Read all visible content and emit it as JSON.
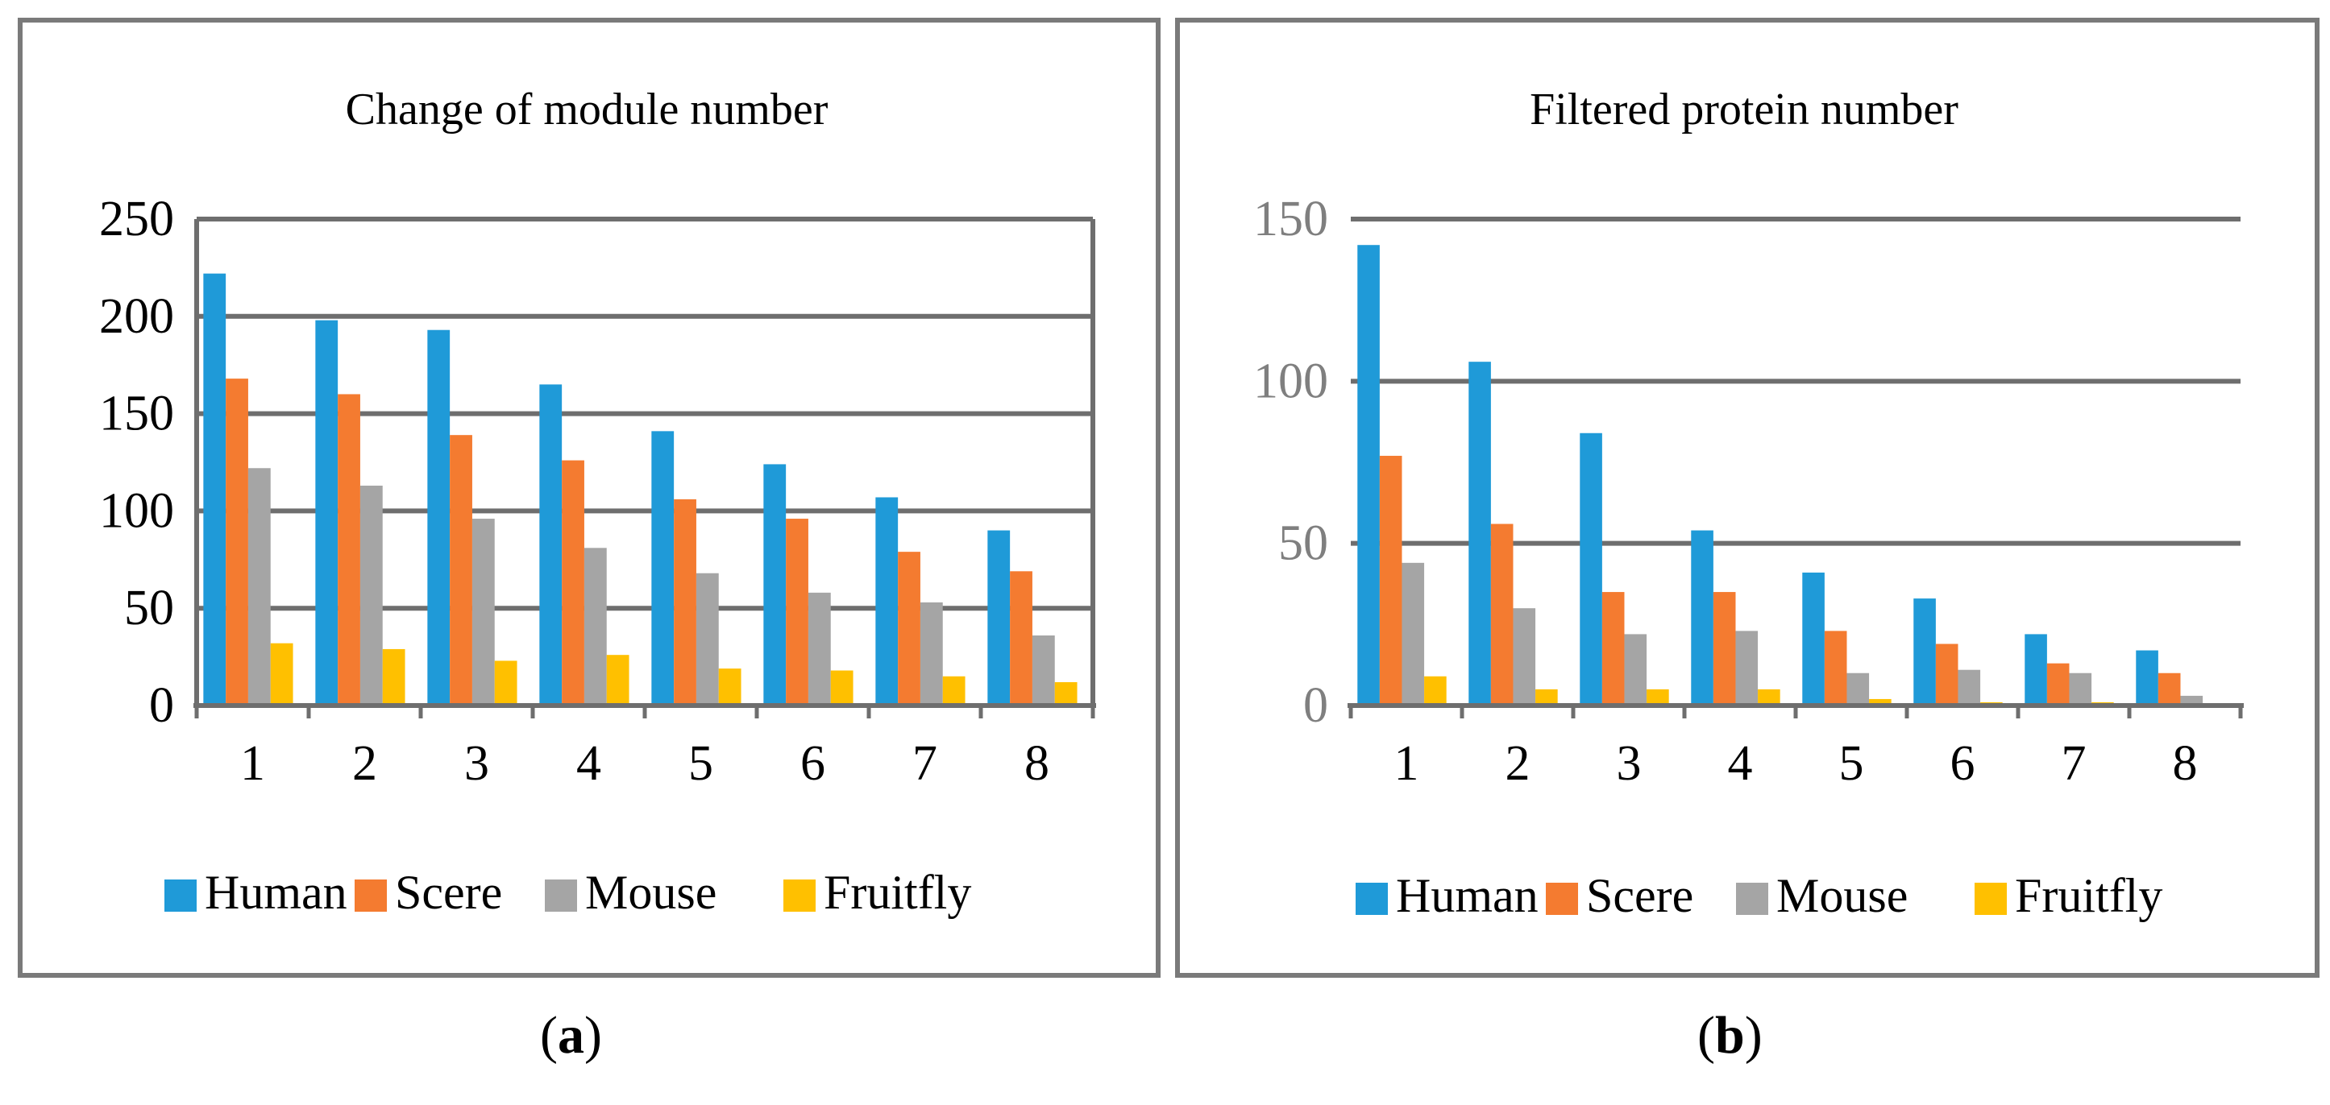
{
  "chart_data": [
    {
      "type": "bar",
      "title": "Change of module number",
      "categories": [
        "1",
        "2",
        "3",
        "4",
        "5",
        "6",
        "7",
        "8"
      ],
      "series": [
        {
          "name": "Human",
          "color": "#1f9ad8",
          "values": [
            222,
            198,
            193,
            165,
            141,
            124,
            107,
            90
          ]
        },
        {
          "name": "Scere",
          "color": "#f47b30",
          "values": [
            168,
            160,
            139,
            126,
            106,
            96,
            79,
            69
          ]
        },
        {
          "name": "Mouse",
          "color": "#a5a5a5",
          "values": [
            122,
            113,
            96,
            81,
            68,
            58,
            53,
            36
          ]
        },
        {
          "name": "Fruitfly",
          "color": "#ffc000",
          "values": [
            32,
            29,
            23,
            26,
            19,
            18,
            15,
            12
          ]
        }
      ],
      "yticks": [
        "0",
        "50",
        "100",
        "150",
        "200",
        "250"
      ],
      "ylim": [
        0,
        250
      ],
      "xlabel": "",
      "ylabel": "",
      "grid": true,
      "legend": "bottom",
      "caption": "a"
    },
    {
      "type": "bar",
      "title": "Filtered protein number",
      "categories": [
        "1",
        "2",
        "3",
        "4",
        "5",
        "6",
        "7",
        "8"
      ],
      "series": [
        {
          "name": "Human",
          "color": "#1f9ad8",
          "values": [
            142,
            106,
            84,
            54,
            41,
            33,
            22,
            17
          ]
        },
        {
          "name": "Scere",
          "color": "#f47b30",
          "values": [
            77,
            56,
            35,
            35,
            23,
            19,
            13,
            10
          ]
        },
        {
          "name": "Mouse",
          "color": "#a5a5a5",
          "values": [
            44,
            30,
            22,
            23,
            10,
            11,
            10,
            3
          ]
        },
        {
          "name": "Fruitfly",
          "color": "#ffc000",
          "values": [
            9,
            5,
            5,
            5,
            2,
            1,
            1,
            0
          ]
        }
      ],
      "yticks": [
        "0",
        "50",
        "100",
        "150"
      ],
      "ylim": [
        0,
        150
      ],
      "xlabel": "",
      "ylabel": "",
      "grid": true,
      "legend": "bottom",
      "caption": "b"
    }
  ],
  "colors": {
    "frame": "#7a7a7a",
    "grid": "#6e6e6e",
    "axis_text_a": "#000000",
    "axis_text_b": "#7f7f7f"
  }
}
